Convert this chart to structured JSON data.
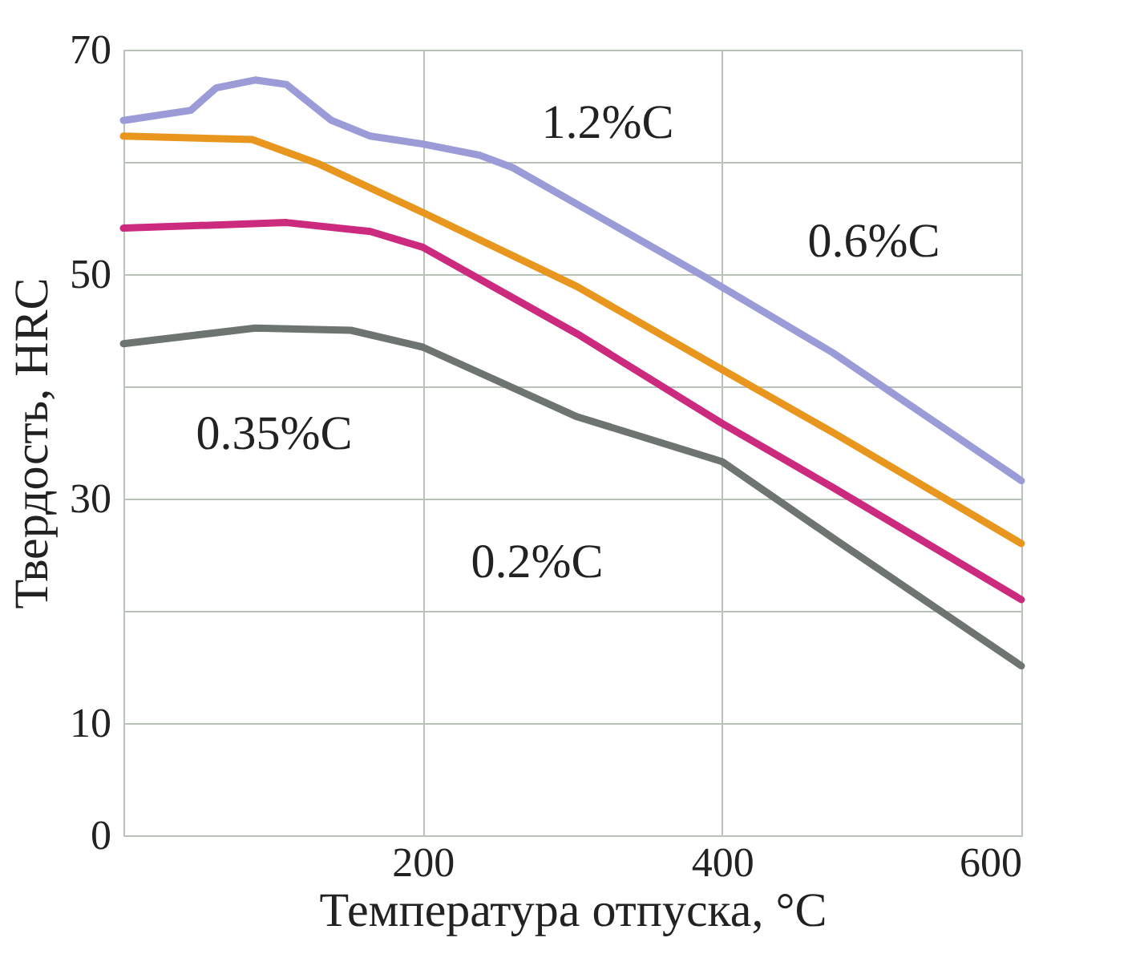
{
  "chart_data": {
    "type": "line",
    "xlabel": "Температура отпуска, °C",
    "ylabel": "Твердость, HRC",
    "xlim": [
      0,
      600
    ],
    "xticks": [
      {
        "value": 0,
        "label": null
      },
      200,
      400,
      600
    ],
    "ylim": [
      0,
      70
    ],
    "yticks": [
      0,
      10,
      {
        "value": 20,
        "label": null
      },
      30,
      {
        "value": 40,
        "label": null
      },
      50,
      {
        "value": 60,
        "label": null
      },
      70
    ],
    "grid": true,
    "marker": "none",
    "line_style": "solid",
    "series": [
      {
        "color": "#9b9bd8",
        "x": [
          0,
          45,
          62,
          88,
          109,
          139,
          165,
          200,
          238,
          260,
          388,
          474,
          600
        ],
        "values": [
          63.7,
          64.6,
          66.6,
          67.3,
          66.9,
          63.7,
          62.3,
          61.6,
          60.6,
          59.5,
          49.8,
          43,
          31.6
        ]
      },
      {
        "color": "#e8961e",
        "x": [
          0,
          86,
          131,
          200,
          303,
          400,
          474,
          600
        ],
        "values": [
          62.3,
          62,
          59.8,
          55.5,
          48.9,
          41.5,
          35.9,
          26
        ]
      },
      {
        "color": "#cc2a7f",
        "x": [
          0,
          109,
          165,
          200,
          303,
          400,
          474,
          600
        ],
        "values": [
          54.1,
          54.6,
          53.8,
          52.4,
          44.7,
          36.7,
          31,
          21
        ]
      },
      {
        "color": "#6e7570",
        "x": [
          0,
          88,
          152,
          200,
          303,
          400,
          474,
          600
        ],
        "values": [
          43.8,
          45.2,
          45,
          43.5,
          37.3,
          33.3,
          26.5,
          15.1
        ]
      }
    ],
    "annotations": [
      "1.2%C",
      "0.6%C",
      "0.35%C",
      "0.2%C"
    ]
  }
}
